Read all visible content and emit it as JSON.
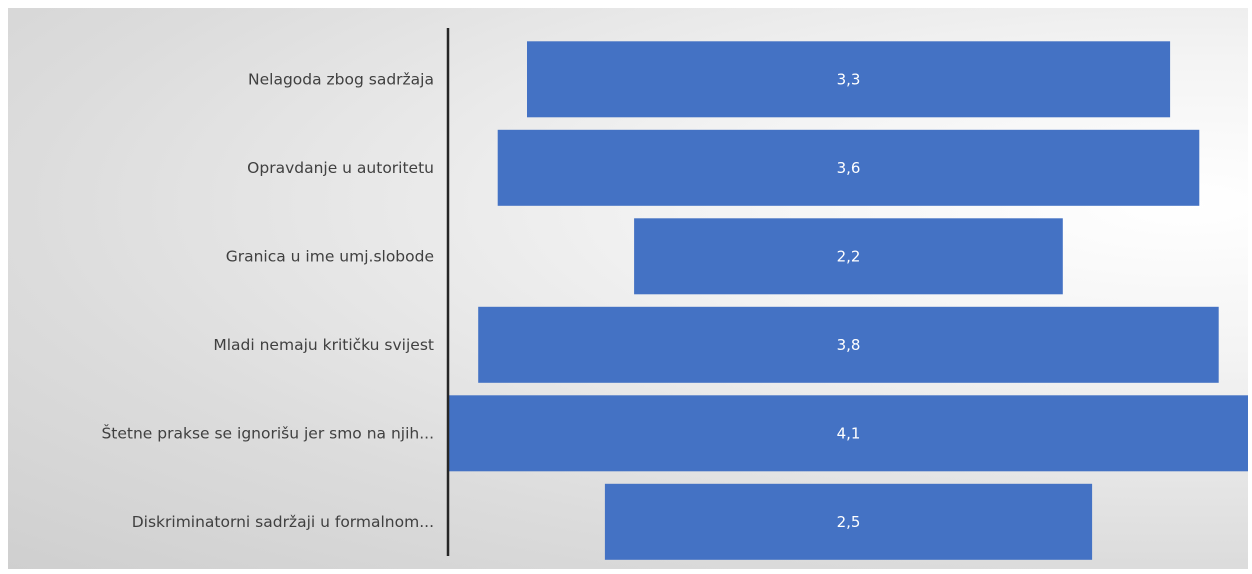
{
  "chart_data": {
    "type": "bar",
    "orientation": "horizontal",
    "layout": "centered-funnel",
    "categories": [
      "Nelagoda zbog sadržaja",
      "Opravdanje u autoritetu",
      "Granica u ime umj.slobode",
      "Mladi nemaju kritičku svijest",
      "Štetne prakse se ignorišu jer smo na njih...",
      "Diskriminatorni sadržaji u formalnom..."
    ],
    "values": [
      3.3,
      3.6,
      2.2,
      3.8,
      4.1,
      2.5
    ],
    "value_labels": [
      "3,3",
      "3,6",
      "2,2",
      "3,8",
      "4,1",
      "2,5"
    ],
    "title": "",
    "xlabel": "",
    "ylabel": "",
    "grid": false,
    "legend": "none",
    "bar_color": "#4472c4",
    "axis_line_color": "#262626"
  }
}
